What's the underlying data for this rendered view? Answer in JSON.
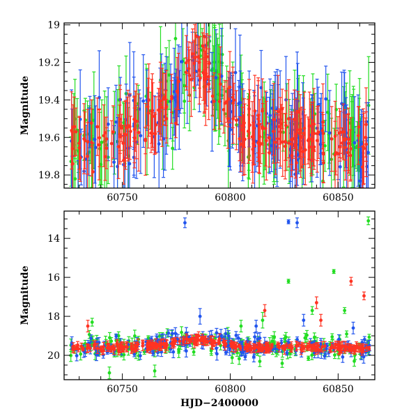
{
  "chart_data": [
    {
      "type": "scatter",
      "panel": "top",
      "ylabel": "Magnitude",
      "xlabel": "",
      "xlim": [
        60723,
        60867
      ],
      "ylim": [
        19.87,
        18.99
      ],
      "y_inverted": true,
      "xticks": [
        60750,
        60800,
        60850
      ],
      "xtick_labels": [
        "60750",
        "60800",
        "60850"
      ],
      "yticks": [
        19.0,
        19.2,
        19.4,
        19.6,
        19.8
      ],
      "ytick_labels": [
        "19",
        "19.2",
        "19.4",
        "19.6",
        "19.8"
      ],
      "grid": false,
      "error_bars": true,
      "series": [
        {
          "color": "#22dd22",
          "baseline": [
            [
              60725,
              19.62
            ],
            [
              60745,
              19.6
            ],
            [
              60755,
              19.55
            ],
            [
              60770,
              19.45
            ],
            [
              60780,
              19.22
            ],
            [
              60784,
              19.08
            ],
            [
              60795,
              19.35
            ],
            [
              60805,
              19.55
            ],
            [
              60830,
              19.58
            ],
            [
              60867,
              19.62
            ]
          ],
          "scatter": 0.11,
          "error": 0.19,
          "count": 150
        },
        {
          "color": "#2255ee",
          "baseline": [
            [
              60725,
              19.62
            ],
            [
              60745,
              19.6
            ],
            [
              60755,
              19.55
            ],
            [
              60770,
              19.45
            ],
            [
              60780,
              19.22
            ],
            [
              60784,
              19.08
            ],
            [
              60795,
              19.35
            ],
            [
              60805,
              19.55
            ],
            [
              60830,
              19.58
            ],
            [
              60867,
              19.62
            ]
          ],
          "scatter": 0.1,
          "error": 0.19,
          "count": 150
        },
        {
          "color": "#ff3322",
          "baseline": [
            [
              60725,
              19.64
            ],
            [
              60745,
              19.61
            ],
            [
              60755,
              19.56
            ],
            [
              60770,
              19.46
            ],
            [
              60780,
              19.26
            ],
            [
              60784,
              19.15
            ],
            [
              60795,
              19.38
            ],
            [
              60805,
              19.55
            ],
            [
              60830,
              19.6
            ],
            [
              60867,
              19.64
            ]
          ],
          "scatter": 0.06,
          "error": 0.14,
          "count": 230
        }
      ]
    },
    {
      "type": "scatter",
      "panel": "bottom",
      "xlabel": "HJD−2400000",
      "ylabel": "Magnitude",
      "xlim": [
        60723,
        60867
      ],
      "ylim": [
        21.25,
        12.6
      ],
      "y_inverted": true,
      "xticks": [
        60750,
        60800,
        60850
      ],
      "xtick_labels": [
        "60750",
        "60800",
        "60850"
      ],
      "yticks": [
        14,
        16,
        18,
        20
      ],
      "ytick_labels": [
        "14",
        "16",
        "18",
        "20"
      ],
      "grid": false,
      "error_bars": true,
      "series": [
        {
          "color": "#22dd22",
          "baseline": [
            [
              60725,
              19.62
            ],
            [
              60745,
              19.6
            ],
            [
              60755,
              19.55
            ],
            [
              60770,
              19.45
            ],
            [
              60780,
              19.22
            ],
            [
              60784,
              19.08
            ],
            [
              60795,
              19.35
            ],
            [
              60805,
              19.55
            ],
            [
              60830,
              19.58
            ],
            [
              60867,
              19.62
            ]
          ],
          "scatter": 0.3,
          "error": 0.22,
          "count": 180,
          "outliers": [
            [
              60864,
              13.1,
              0.2
            ],
            [
              60827,
              16.2,
              0.1
            ],
            [
              60848,
              15.7,
              0.1
            ],
            [
              60853,
              17.7,
              0.15
            ],
            [
              60736,
              18.3,
              0.2
            ],
            [
              60805,
              18.5,
              0.3
            ],
            [
              60815,
              18.2,
              0.4
            ],
            [
              60838,
              17.7,
              0.2
            ],
            [
              60744,
              20.9,
              0.3
            ],
            [
              60765,
              20.8,
              0.3
            ]
          ]
        },
        {
          "color": "#2255ee",
          "baseline": [
            [
              60725,
              19.62
            ],
            [
              60745,
              19.6
            ],
            [
              60755,
              19.55
            ],
            [
              60770,
              19.45
            ],
            [
              60780,
              19.22
            ],
            [
              60784,
              19.08
            ],
            [
              60795,
              19.35
            ],
            [
              60805,
              19.55
            ],
            [
              60830,
              19.58
            ],
            [
              60867,
              19.62
            ]
          ],
          "scatter": 0.25,
          "error": 0.22,
          "count": 180,
          "outliers": [
            [
              60779,
              13.2,
              0.25
            ],
            [
              60827,
              13.15,
              0.1
            ],
            [
              60831,
              13.2,
              0.25
            ],
            [
              60786,
              18.0,
              0.4
            ],
            [
              60812,
              18.5,
              0.3
            ],
            [
              60834,
              18.2,
              0.3
            ],
            [
              60857,
              18.6,
              0.3
            ]
          ]
        },
        {
          "color": "#ff3322",
          "baseline": [
            [
              60725,
              19.64
            ],
            [
              60745,
              19.61
            ],
            [
              60755,
              19.56
            ],
            [
              60770,
              19.46
            ],
            [
              60780,
              19.26
            ],
            [
              60784,
              19.15
            ],
            [
              60795,
              19.38
            ],
            [
              60805,
              19.55
            ],
            [
              60830,
              19.6
            ],
            [
              60867,
              19.64
            ]
          ],
          "scatter": 0.08,
          "error": 0.18,
          "count": 260,
          "outliers": [
            [
              60856,
              16.2,
              0.2
            ],
            [
              60862,
              16.95,
              0.2
            ],
            [
              60840,
              17.3,
              0.3
            ],
            [
              60734,
              18.5,
              0.3
            ],
            [
              60816,
              17.7,
              0.3
            ],
            [
              60842,
              18.2,
              0.3
            ]
          ]
        }
      ]
    }
  ]
}
